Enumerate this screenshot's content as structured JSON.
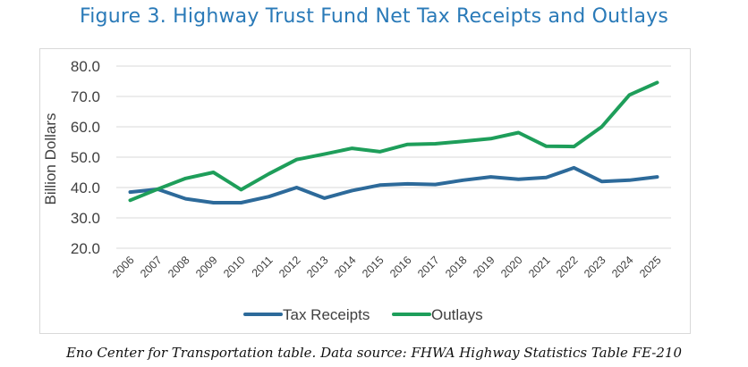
{
  "title": "Figure 3. Highway Trust Fund Net Tax Receipts and Outlays",
  "caption": "Eno Center for Transportation table. Data source: FHWA Highway Statistics Table FE-210",
  "chart_data": {
    "type": "line",
    "title": "Figure 3. Highway Trust Fund Net Tax Receipts and Outlays",
    "xlabel": "",
    "ylabel": "Billion Dollars",
    "ylim": [
      20,
      80
    ],
    "yticks": [
      "20.0",
      "30.0",
      "40.0",
      "50.0",
      "60.0",
      "70.0",
      "80.0"
    ],
    "grid": "horizontal",
    "legend": "bottom",
    "x": [
      "2006",
      "2007",
      "2008",
      "2009",
      "2010",
      "2011",
      "2012",
      "2013",
      "2014",
      "2015",
      "2016",
      "2017",
      "2018",
      "2019",
      "2020",
      "2021",
      "2022",
      "2023",
      "2024",
      "2025"
    ],
    "series": [
      {
        "name": "Tax Receipts",
        "color": "#2d6a9a",
        "values": [
          38.5,
          39.4,
          36.3,
          35.0,
          35.0,
          37.0,
          40.0,
          36.5,
          39.0,
          40.8,
          41.2,
          41.0,
          42.4,
          43.5,
          42.7,
          43.3,
          46.5,
          42.0,
          42.4,
          43.5
        ]
      },
      {
        "name": "Outlays",
        "color": "#1e9e5a",
        "values": [
          35.8,
          39.5,
          43.0,
          45.0,
          39.3,
          44.5,
          49.2,
          51.0,
          52.9,
          51.8,
          54.2,
          54.4,
          55.2,
          56.1,
          58.1,
          53.6,
          53.5,
          60.0,
          70.5,
          74.6
        ]
      }
    ]
  }
}
